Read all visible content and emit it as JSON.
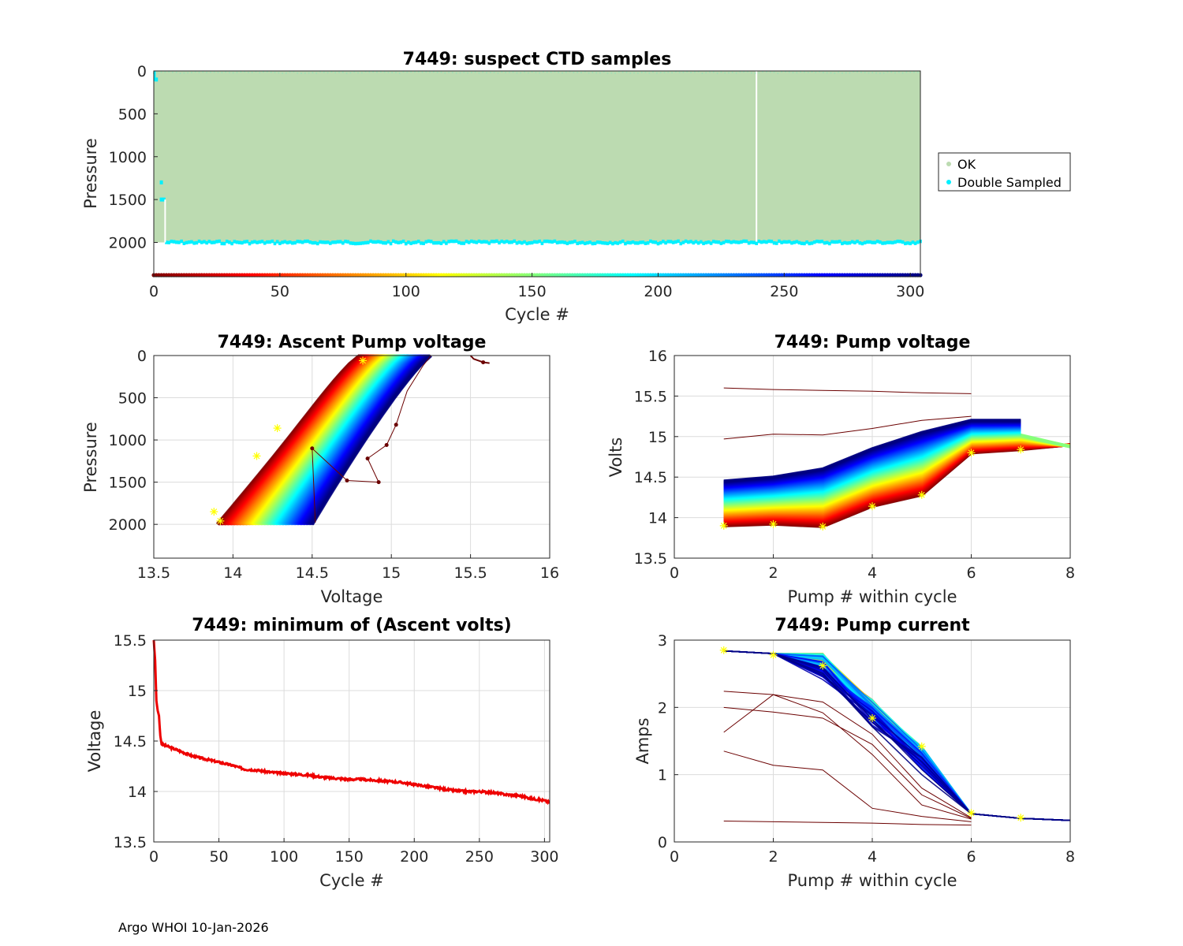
{
  "footer": "Argo WHOI 10-Jan-2026",
  "colors": {
    "ok": "#bcdbb1",
    "double": "#00f0ff",
    "marker": "#ffff00",
    "minline": "#ee0000",
    "grid": "#dcdcdc"
  },
  "chart_data": [
    {
      "id": "ctd",
      "type": "scatter",
      "title": "7449: suspect CTD samples",
      "xlabel": "Cycle #",
      "ylabel": "Pressure",
      "xlim": [
        0,
        304
      ],
      "ylim": [
        0,
        2400
      ],
      "y_reversed": true,
      "xticks": [
        0,
        50,
        100,
        150,
        200,
        250,
        300
      ],
      "yticks": [
        0,
        500,
        1000,
        1500,
        2000
      ],
      "legend": {
        "position": "right",
        "entries": [
          "OK",
          "Double Sampled"
        ]
      },
      "ok_region": {
        "cycles": [
          0,
          304
        ],
        "pressure": [
          0,
          2000
        ],
        "gap_cycle": 239
      },
      "double_sampled_band": {
        "cycles": [
          5,
          304
        ],
        "pressure_mean": 2000
      },
      "early_double_sampled": [
        {
          "cycle": 1,
          "pressure": 100
        },
        {
          "cycle": 3,
          "pressure": 1300
        },
        {
          "cycle": 3,
          "pressure": 1500
        },
        {
          "cycle": 4,
          "pressure": 1500
        }
      ],
      "cycle_colorbar_pressure": 2400
    },
    {
      "id": "ascent",
      "type": "line",
      "title": "7449: Ascent Pump voltage",
      "xlabel": "Voltage",
      "ylabel": "Pressure",
      "xlim": [
        13.5,
        16
      ],
      "ylim": [
        0,
        2400
      ],
      "y_reversed": true,
      "xticks": [
        13.5,
        14,
        14.5,
        15,
        15.5,
        16
      ],
      "yticks": [
        0,
        500,
        1000,
        1500,
        2000
      ],
      "curve_envelope": {
        "bottom_voltage": [
          13.9,
          14.5
        ],
        "top_voltage": [
          14.8,
          15.25
        ],
        "bottom_pressure": 2000
      },
      "first_cycle_markers": [
        {
          "x": 13.88,
          "y": 1850
        },
        {
          "x": 13.92,
          "y": 1960
        },
        {
          "x": 14.15,
          "y": 1190
        },
        {
          "x": 14.28,
          "y": 860
        },
        {
          "x": 14.82,
          "y": 60
        }
      ],
      "outlier_points": [
        {
          "x": 14.5,
          "y": 1100
        },
        {
          "x": 14.72,
          "y": 1480
        },
        {
          "x": 14.85,
          "y": 1220
        },
        {
          "x": 14.92,
          "y": 1500
        },
        {
          "x": 15.03,
          "y": 820
        },
        {
          "x": 14.97,
          "y": 1060
        },
        {
          "x": 15.58,
          "y": 80
        }
      ]
    },
    {
      "id": "pumpv",
      "type": "line",
      "title": "7449: Pump voltage",
      "xlabel": "Pump # within cycle",
      "ylabel": "Volts",
      "xlim": [
        0,
        8
      ],
      "ylim": [
        13.5,
        16
      ],
      "xticks": [
        0,
        2,
        4,
        6,
        8
      ],
      "yticks": [
        13.5,
        14,
        14.5,
        15,
        15.5,
        16
      ],
      "pumps": [
        1,
        2,
        3,
        4,
        5,
        6,
        7,
        8
      ],
      "early_cycle_series": [
        13.9,
        13.92,
        13.89,
        14.14,
        14.28,
        14.8,
        14.84
      ],
      "late_cycle_series": [
        14.45,
        14.5,
        14.6,
        14.85,
        15.05,
        15.2,
        15.2
      ],
      "outlier_series": [
        [
          15.6,
          15.58,
          15.57,
          15.56,
          15.54,
          15.53
        ],
        [
          14.97,
          15.03,
          15.02,
          15.1,
          15.2,
          15.25
        ]
      ]
    },
    {
      "id": "minv",
      "type": "line",
      "title": "7449: minimum of (Ascent volts)",
      "xlabel": "Cycle #",
      "ylabel": "Voltage",
      "xlim": [
        0,
        304
      ],
      "ylim": [
        13.5,
        15.5
      ],
      "xticks": [
        0,
        50,
        100,
        150,
        200,
        250,
        300
      ],
      "yticks": [
        13.5,
        14,
        14.5,
        15,
        15.5
      ],
      "x": [
        0,
        1,
        2,
        3,
        4,
        5,
        6,
        10,
        20,
        30,
        40,
        50,
        60,
        70,
        80,
        90,
        100,
        110,
        120,
        130,
        140,
        150,
        160,
        170,
        180,
        190,
        200,
        210,
        220,
        230,
        240,
        250,
        260,
        270,
        280,
        290,
        300,
        304
      ],
      "y": [
        15.5,
        15.3,
        14.9,
        14.8,
        14.75,
        14.55,
        14.47,
        14.45,
        14.4,
        14.35,
        14.32,
        14.29,
        14.26,
        14.22,
        14.21,
        14.19,
        14.18,
        14.17,
        14.16,
        14.14,
        14.13,
        14.12,
        14.12,
        14.11,
        14.1,
        14.09,
        14.07,
        14.05,
        14.03,
        14.01,
        14.0,
        14.0,
        13.99,
        13.97,
        13.96,
        13.93,
        13.91,
        13.89
      ]
    },
    {
      "id": "pumpa",
      "type": "line",
      "title": "7449: Pump current",
      "xlabel": "Pump # within cycle",
      "ylabel": "Amps",
      "xlim": [
        0,
        8
      ],
      "ylim": [
        0,
        3
      ],
      "xticks": [
        0,
        2,
        4,
        6,
        8
      ],
      "yticks": [
        0,
        1,
        2,
        3
      ],
      "pumps": [
        1,
        2,
        3,
        4,
        5,
        6,
        7,
        8
      ],
      "early_cycle_series": [
        2.85,
        2.78,
        2.62,
        1.84,
        1.42,
        0.43,
        0.36
      ],
      "mean_series": [
        2.84,
        2.8,
        2.68,
        2.0,
        1.3,
        0.42,
        0.35,
        0.32
      ],
      "outlier_series": [
        [
          2.24,
          2.19,
          2.08,
          1.6,
          0.8,
          0.36
        ],
        [
          1.63,
          2.19,
          1.92,
          1.3,
          0.55,
          0.34
        ],
        [
          2.0,
          1.93,
          1.84,
          1.45,
          0.7,
          0.35
        ],
        [
          1.35,
          1.14,
          1.07,
          0.5,
          0.38,
          0.3
        ],
        [
          0.31,
          0.3,
          0.29,
          0.28,
          0.26,
          0.25
        ]
      ]
    }
  ]
}
